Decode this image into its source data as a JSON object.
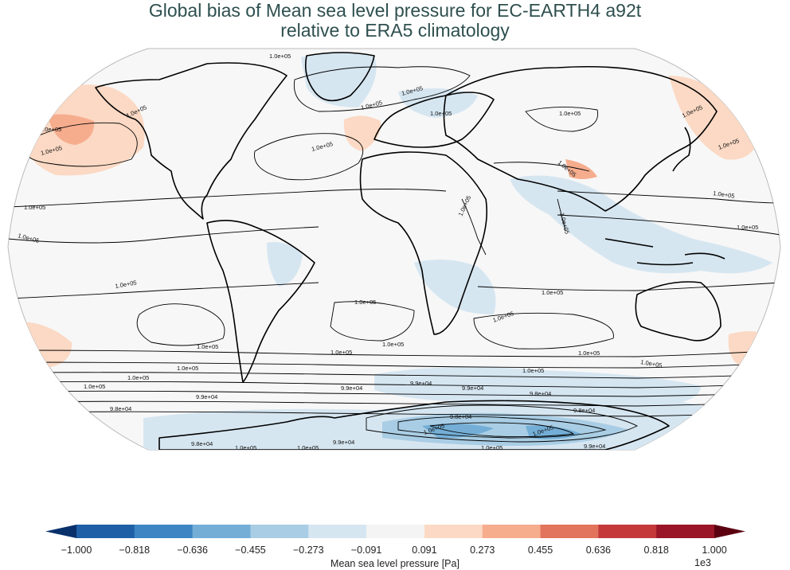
{
  "title": {
    "line1": "Global bias of Mean sea level pressure for EC-EARTH4 a92t",
    "line2": "relative to ERA5 climatology"
  },
  "colorbar": {
    "label": "Mean sea level pressure [Pa]",
    "exponent": "1e3",
    "ticks": [
      "−1.000",
      "−0.818",
      "−0.636",
      "−0.455",
      "−0.273",
      "−0.091",
      "0.091",
      "0.273",
      "0.455",
      "0.636",
      "0.818",
      "1.000"
    ],
    "colors": [
      "#08306b",
      "#1f5fa6",
      "#3d86c3",
      "#74aed6",
      "#a9cde4",
      "#d6e6f1",
      "#f4f4f4",
      "#fbd9c4",
      "#f6ad8e",
      "#e2745d",
      "#c4383a",
      "#9a1527",
      "#5c0011"
    ]
  },
  "contour_labels": [
    "1.0e+05",
    "1.0e+05",
    "1.0e+05",
    "1.0e+05",
    "1.0e+05",
    "1.0e+05",
    "1.0e+05",
    "1.0e+05",
    "1.0e+05",
    "1.0e+05",
    "1.0e+05",
    "1.0e+05",
    "1.0e+05",
    "1.0e+05",
    "1.0e+05",
    "1.0e+05",
    "1.0e+05",
    "1.0e+05",
    "1.0e+05",
    "1.0e+05",
    "1.0e+05",
    "1.0e+05",
    "1.0e+05",
    "1.0e+05",
    "1.0e+05",
    "1.0e+05",
    "1.0e+05",
    "1.0e+05",
    "1.0e+05",
    "1.0e+05",
    "9.9e+04",
    "9.9e+04",
    "9.9e+04",
    "9.9e+04",
    "9.8e+04",
    "9.8e+04",
    "9.8e+04",
    "9.8e+04",
    "9.9e+04",
    "9.8e+04",
    "1.0e+05",
    "1.0e+05",
    "1.0e+05",
    "1.0e+05",
    "1.0e+05",
    "1.0e+05",
    "9.9e+04"
  ]
}
